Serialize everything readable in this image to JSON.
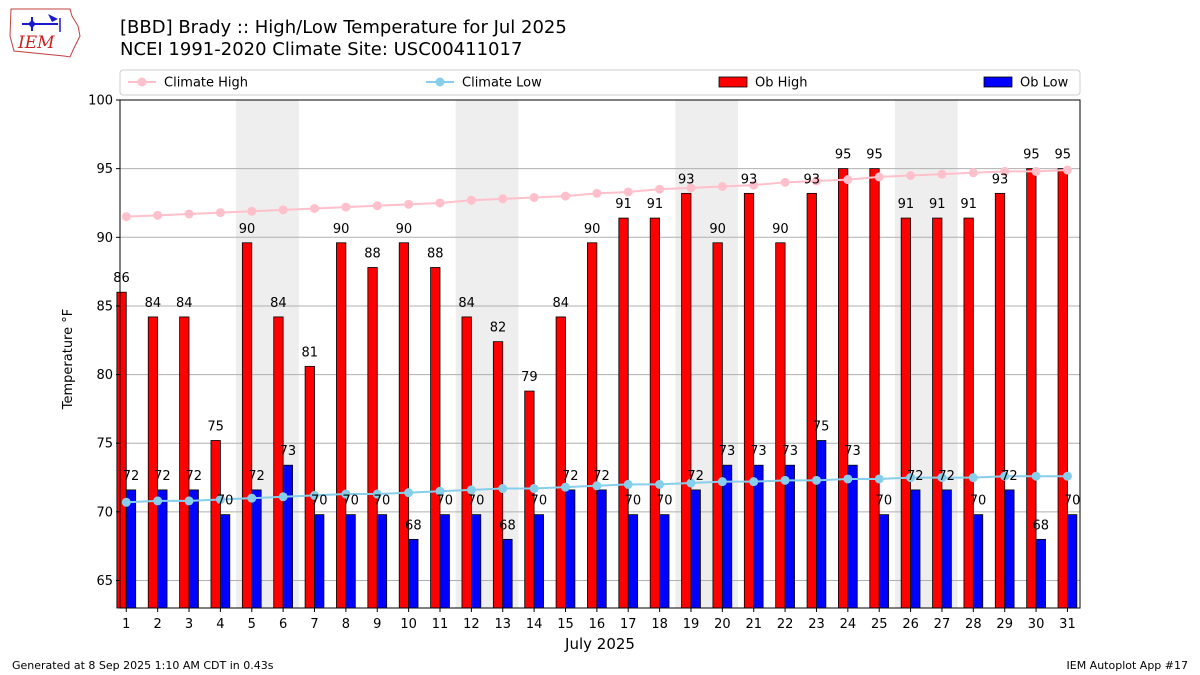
{
  "header": {
    "title_line1": "[BBD] Brady :: High/Low Temperature for Jul 2025",
    "title_line2": "NCEI 1991-2020 Climate Site: USC00411017",
    "logo_text": "IEM"
  },
  "footer": {
    "left": "Generated at 8 Sep 2025 1:10 AM CDT in 0.43s",
    "right": "IEM Autoplot App #17"
  },
  "colors": {
    "ob_high": "#ff0000",
    "ob_low": "#0000ff",
    "climate_high": "#ffc0cb",
    "climate_low": "#87ceeb",
    "weekend_shade": "#eeeeee",
    "grid": "#b0b0b0"
  },
  "chart_data": {
    "type": "bar",
    "xlabel": "July 2025",
    "ylabel": "Temperature °F",
    "ylim": [
      63,
      100
    ],
    "yticks": [
      65,
      70,
      75,
      80,
      85,
      90,
      95,
      100
    ],
    "grid": "horizontal",
    "legend_position": "top",
    "categories": [
      "1",
      "2",
      "3",
      "4",
      "5",
      "6",
      "7",
      "8",
      "9",
      "10",
      "11",
      "12",
      "13",
      "14",
      "15",
      "16",
      "17",
      "18",
      "19",
      "20",
      "21",
      "22",
      "23",
      "24",
      "25",
      "26",
      "27",
      "28",
      "29",
      "30",
      "31"
    ],
    "shaded_day_ranges": [
      [
        5,
        6
      ],
      [
        12,
        13
      ],
      [
        19,
        20
      ],
      [
        26,
        27
      ]
    ],
    "series": [
      {
        "name": "Climate High",
        "kind": "line",
        "values": [
          91.5,
          91.6,
          91.7,
          91.8,
          91.9,
          92.0,
          92.1,
          92.2,
          92.3,
          92.4,
          92.5,
          92.7,
          92.8,
          92.9,
          93.0,
          93.2,
          93.3,
          93.5,
          93.6,
          93.7,
          93.8,
          94.0,
          94.1,
          94.2,
          94.4,
          94.5,
          94.6,
          94.7,
          94.8,
          94.8,
          94.9
        ]
      },
      {
        "name": "Climate Low",
        "kind": "line",
        "values": [
          70.7,
          70.8,
          70.8,
          70.9,
          71.0,
          71.1,
          71.2,
          71.3,
          71.3,
          71.4,
          71.5,
          71.6,
          71.7,
          71.7,
          71.8,
          71.9,
          72.0,
          72.0,
          72.1,
          72.2,
          72.2,
          72.3,
          72.3,
          72.4,
          72.4,
          72.5,
          72.5,
          72.5,
          72.6,
          72.6,
          72.6
        ]
      },
      {
        "name": "Ob High",
        "kind": "bar",
        "values": [
          86,
          84,
          84,
          75,
          90,
          84,
          81,
          90,
          88,
          90,
          88,
          84,
          82,
          79,
          84,
          90,
          91,
          91,
          93,
          90,
          93,
          90,
          93,
          95,
          95,
          91,
          91,
          91,
          93,
          95,
          95
        ],
        "bar_heights": [
          86.0,
          84.2,
          84.2,
          75.2,
          89.6,
          84.2,
          80.6,
          89.6,
          87.8,
          89.6,
          87.8,
          84.2,
          82.4,
          78.8,
          84.2,
          89.6,
          91.4,
          91.4,
          93.2,
          89.6,
          93.2,
          89.6,
          93.2,
          95.0,
          95.0,
          91.4,
          91.4,
          91.4,
          93.2,
          95.0,
          95.0
        ]
      },
      {
        "name": "Ob Low",
        "kind": "bar",
        "values": [
          72,
          72,
          72,
          70,
          72,
          73,
          70,
          70,
          70,
          68,
          70,
          70,
          68,
          70,
          72,
          72,
          70,
          70,
          72,
          73,
          73,
          73,
          75,
          73,
          70,
          72,
          72,
          70,
          72,
          68,
          70
        ],
        "bar_heights": [
          71.6,
          71.6,
          71.6,
          69.8,
          71.6,
          73.4,
          69.8,
          69.8,
          69.8,
          68.0,
          69.8,
          69.8,
          68.0,
          69.8,
          71.6,
          71.6,
          69.8,
          69.8,
          71.6,
          73.4,
          73.4,
          73.4,
          75.2,
          73.4,
          69.8,
          71.6,
          71.6,
          69.8,
          71.6,
          68.0,
          69.8
        ]
      }
    ]
  }
}
